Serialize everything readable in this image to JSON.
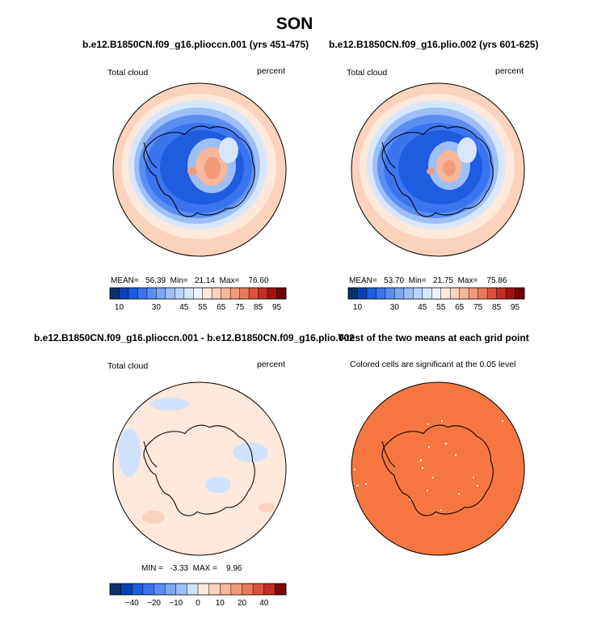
{
  "figure": {
    "title": "SON"
  },
  "panels": [
    {
      "id": "p1",
      "case_title": "b.e12.B1850CN.f09_g16.plioccn.001 (yrs 451-475)",
      "left_label": "Total cloud",
      "right_label": "percent",
      "stats": {
        "mean_label": "MEAN=",
        "mean": "56.39",
        "min_label": "Min=",
        "min": "21.14",
        "max_label": "Max=",
        "max": "76.60"
      }
    },
    {
      "id": "p2",
      "case_title": "b.e12.B1850CN.f09_g16.plio.002 (yrs 601-625)",
      "left_label": "Total cloud",
      "right_label": "percent",
      "stats": {
        "mean_label": "MEAN=",
        "mean": "53.70",
        "min_label": "Min=",
        "min": "21.75",
        "max_label": "Max=",
        "max": "75.86"
      }
    },
    {
      "id": "p3",
      "case_title": "b.e12.B1850CN.f09_g16.plioccn.001 - b.e12.B1850CN.f09_g16.plio.002",
      "left_label": "Total cloud",
      "right_label": "percent",
      "stats_line": "MIN =   -3.33  MAX =    9.96"
    },
    {
      "id": "p4",
      "case_title": "T-test of the two means at each grid point",
      "subtitle": "Colored cells are significant at the 0.05 level"
    }
  ],
  "chart_data": [
    {
      "type": "heatmap",
      "title": "b.e12.B1850CN.f09_g16.plioccn.001 (yrs 451-475)",
      "variable": "Total cloud",
      "units": "percent",
      "season": "SON",
      "projection": "south polar stereographic",
      "stats": {
        "mean": 56.39,
        "min": 21.14,
        "max": 76.6
      },
      "colorbar": {
        "levels": [
          10,
          15,
          20,
          25,
          30,
          35,
          40,
          45,
          50,
          55,
          60,
          65,
          70,
          75,
          80,
          85,
          90,
          95
        ],
        "tick_labels": [
          "10",
          "30",
          "45",
          "55",
          "65",
          "75",
          "85",
          "95"
        ],
        "colors": [
          "#08306b",
          "#0b40b0",
          "#1e5ce0",
          "#3a75ee",
          "#5a8ff2",
          "#7ca8f4",
          "#9dbff7",
          "#bcd4fa",
          "#d8e6fc",
          "#eef4fe",
          "#fde8dc",
          "#fbd2bd",
          "#f7b79a",
          "#f29a78",
          "#e8795a",
          "#d9543c",
          "#bf2f22",
          "#9b1410",
          "#6e0606"
        ]
      }
    },
    {
      "type": "heatmap",
      "title": "b.e12.B1850CN.f09_g16.plio.002 (yrs 601-625)",
      "variable": "Total cloud",
      "units": "percent",
      "season": "SON",
      "projection": "south polar stereographic",
      "stats": {
        "mean": 53.7,
        "min": 21.75,
        "max": 75.86
      },
      "colorbar": {
        "levels": [
          10,
          15,
          20,
          25,
          30,
          35,
          40,
          45,
          50,
          55,
          60,
          65,
          70,
          75,
          80,
          85,
          90,
          95
        ],
        "tick_labels": [
          "10",
          "30",
          "45",
          "55",
          "65",
          "75",
          "85",
          "95"
        ],
        "colors": [
          "#08306b",
          "#0b40b0",
          "#1e5ce0",
          "#3a75ee",
          "#5a8ff2",
          "#7ca8f4",
          "#9dbff7",
          "#bcd4fa",
          "#d8e6fc",
          "#eef4fe",
          "#fde8dc",
          "#fbd2bd",
          "#f7b79a",
          "#f29a78",
          "#e8795a",
          "#d9543c",
          "#bf2f22",
          "#9b1410",
          "#6e0606"
        ]
      }
    },
    {
      "type": "heatmap",
      "title": "b.e12.B1850CN.f09_g16.plioccn.001 - b.e12.B1850CN.f09_g16.plio.002",
      "variable": "Total cloud",
      "units": "percent",
      "season": "SON",
      "projection": "south polar stereographic",
      "stats": {
        "min": -3.33,
        "max": 9.96
      },
      "colorbar": {
        "levels": [
          -50,
          -40,
          -30,
          -20,
          -15,
          -10,
          -5,
          0,
          5,
          10,
          15,
          20,
          30,
          40,
          50
        ],
        "tick_labels": [
          "-40",
          "-20",
          "-10",
          "0",
          "10",
          "20",
          "40"
        ],
        "colors": [
          "#08306b",
          "#0b40b0",
          "#1e5ce0",
          "#3a75ee",
          "#5a8ff2",
          "#7ca8f4",
          "#9dbff7",
          "#d0e2fb",
          "#fde8dc",
          "#fbd2bd",
          "#f7b79a",
          "#f29a78",
          "#e8795a",
          "#d9543c",
          "#bf2f22",
          "#7a0a0a"
        ]
      }
    },
    {
      "type": "heatmap",
      "title": "T-test of the two means at each grid point",
      "subtitle": "Colored cells are significant at the 0.05 level",
      "projection": "south polar stereographic",
      "significance_color": "#f57640"
    }
  ]
}
